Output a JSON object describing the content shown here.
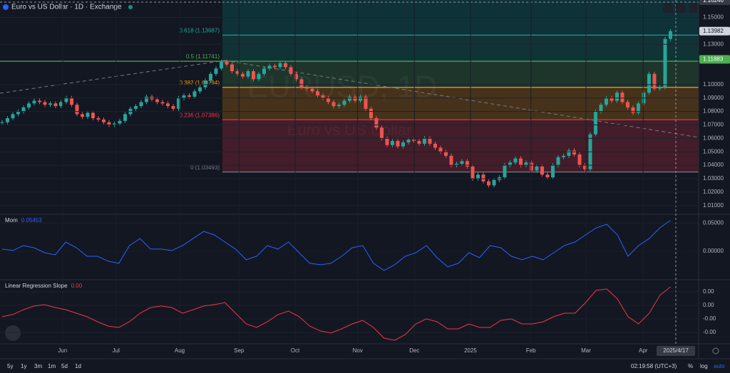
{
  "header": {
    "title": "Euro vs US Dollar · 1D · Exchange"
  },
  "watermark": {
    "symbol": "EURUSD, 1D",
    "name": "Euro vs US Dollar"
  },
  "chart_data": {
    "type": "candlestick",
    "up_color": "#26a69a",
    "down_color": "#ef5350",
    "values": [
      1.072,
      1.075,
      1.078,
      1.08,
      1.083,
      1.086,
      1.088,
      1.087,
      1.085,
      1.086,
      1.084,
      1.087,
      1.09,
      1.085,
      1.078,
      1.076,
      1.079,
      1.075,
      1.074,
      1.072,
      1.07,
      1.071,
      1.073,
      1.078,
      1.082,
      1.084,
      1.087,
      1.091,
      1.089,
      1.087,
      1.086,
      1.084,
      1.082,
      1.09,
      1.092,
      1.091,
      1.095,
      1.098,
      1.103,
      1.108,
      1.112,
      1.117,
      1.115,
      1.11,
      1.108,
      1.106,
      1.11,
      1.104,
      1.108,
      1.112,
      1.114,
      1.113,
      1.116,
      1.113,
      1.108,
      1.104,
      1.098,
      1.097,
      1.095,
      1.092,
      1.09,
      1.087,
      1.084,
      1.085,
      1.088,
      1.091,
      1.088,
      1.091,
      1.082,
      1.075,
      1.068,
      1.06,
      1.055,
      1.058,
      1.054,
      1.057,
      1.059,
      1.058,
      1.056,
      1.06,
      1.056,
      1.053,
      1.05,
      1.047,
      1.04,
      1.041,
      1.043,
      1.039,
      1.03,
      1.033,
      1.028,
      1.025,
      1.029,
      1.031,
      1.04,
      1.042,
      1.045,
      1.04,
      1.042,
      1.036,
      1.039,
      1.033,
      1.031,
      1.04,
      1.046,
      1.047,
      1.051,
      1.048,
      1.04,
      1.037,
      1.063,
      1.08,
      1.085,
      1.09,
      1.088,
      1.094,
      1.087,
      1.083,
      1.079,
      1.086,
      1.094,
      1.108,
      1.097,
      1.098,
      1.134,
      1.13982
    ],
    "xlim": [
      -0.4,
      130.27
    ],
    "xticks": [
      {
        "value": 11.3,
        "label": "Jun"
      },
      {
        "value": 21.3,
        "label": "Jul"
      },
      {
        "value": 33.2,
        "label": "Aug"
      },
      {
        "value": 44.3,
        "label": "Sep"
      },
      {
        "value": 54.8,
        "label": "Oct"
      },
      {
        "value": 66.5,
        "label": "Nov"
      },
      {
        "value": 77.1,
        "label": "Dec"
      },
      {
        "value": 87.6,
        "label": "2025"
      },
      {
        "value": 98.9,
        "label": "Feb"
      },
      {
        "value": 109.2,
        "label": "Mar"
      },
      {
        "value": 119.9,
        "label": "Apr"
      }
    ],
    "ylim": [
      1.004,
      1.163
    ],
    "yticks": [
      {
        "value": 1.15,
        "label": "1.15000"
      },
      {
        "value": 1.13,
        "label": "1.13000"
      },
      {
        "value": 1.1,
        "label": "1.10000"
      },
      {
        "value": 1.09,
        "label": "1.09000"
      },
      {
        "value": 1.08,
        "label": "1.08000"
      },
      {
        "value": 1.07,
        "label": "1.07000"
      },
      {
        "value": 1.06,
        "label": "1.06000"
      },
      {
        "value": 1.05,
        "label": "1.05000"
      },
      {
        "value": 1.04,
        "label": "1.04000"
      },
      {
        "value": 1.03,
        "label": "1.03000"
      },
      {
        "value": 1.02,
        "label": "1.02000"
      },
      {
        "value": 1.01,
        "label": "1.01000"
      }
    ],
    "price_badges": [
      {
        "value": 1.16246,
        "color": "#363a45"
      },
      {
        "value": 1.13982,
        "color": "#d1d4dc"
      },
      {
        "value": 1.11883,
        "color": "#4caf50"
      }
    ],
    "fib_levels": [
      {
        "label": "0 (1.03493)",
        "price": 1.03493,
        "color": "#787b86",
        "fill": "rgba(242,54,69,0.22)"
      },
      {
        "label": "0.236 (1.07386)",
        "price": 1.07386,
        "color": "#f23645",
        "fill": "rgba(255,152,0,0.22)"
      },
      {
        "label": "0.382 (1.09794)",
        "price": 1.09794,
        "color": "#ff9800",
        "fill": "rgba(76,175,80,0.2)"
      },
      {
        "label": "0.5 (1.11741)",
        "price": 1.11741,
        "color": "#4caf50",
        "fill": "rgba(8,153,129,0.22)"
      },
      {
        "label": "0.618 (1.13687)",
        "price": 1.13687,
        "color": "#26a69a",
        "fill": "rgba(0,150,136,0.22)"
      }
    ],
    "indicators": [
      {
        "name": "Mom",
        "color": "#2962ff",
        "values": [
          0.0038,
          0.0013,
          0.01,
          0.0063,
          -0.0025,
          -0.0063,
          0.0163,
          0.0063,
          -0.0088,
          -0.0088,
          -0.0175,
          -0.0213,
          0.01,
          0.0225,
          0.0038,
          0.0038,
          0.0013,
          0.01,
          0.0225,
          0.035,
          0.0288,
          0.0163,
          0.0038,
          -0.015,
          -0.0088,
          0.01,
          0.0038,
          0.0163,
          -0.0025,
          -0.0213,
          -0.0238,
          -0.0213,
          -0.0088,
          0.0063,
          0.01,
          -0.0213,
          -0.0338,
          -0.0238,
          -0.0088,
          -0.0025,
          0.01,
          -0.0113,
          -0.0275,
          -0.0213,
          -0.0025,
          -0.0113,
          0.01,
          0.0063,
          -0.0088,
          -0.015,
          -0.0088,
          -0.015,
          -0.0025,
          0.01,
          0.0163,
          0.0288,
          0.0413,
          0.0475,
          0.0288,
          -0.0088,
          0.01,
          0.0225,
          0.0413,
          0.05453
        ],
        "ylim": [
          -0.049,
          0.064
        ],
        "yticks": [
          {
            "value": 0.05,
            "label": "0.05000"
          },
          {
            "value": 0,
            "label": "0.00000"
          }
        ]
      },
      {
        "name": "Linear Regression Slope",
        "color": "#f23645",
        "value_label": "0.00",
        "values": [
          -0.00034,
          -0.00018,
          0.00018,
          0.00045,
          0.00055,
          0.00034,
          0.00018,
          -8e-05,
          -0.00034,
          -0.00071,
          -0.00103,
          -0.00113,
          -0.00071,
          -8e-05,
          0.00034,
          0.00045,
          0.00034,
          -8e-05,
          0.00018,
          0.00045,
          0.00055,
          0.00071,
          -8e-05,
          -0.00087,
          -0.00113,
          -0.00071,
          -0.00018,
          8e-05,
          -0.00034,
          -0.00103,
          -0.00139,
          -0.00155,
          -0.00124,
          -0.00087,
          -0.00061,
          -0.00113,
          -0.00192,
          -0.00208,
          -0.00166,
          -0.00087,
          -0.0005,
          -0.00071,
          -0.00124,
          -0.00124,
          -0.00087,
          -0.00113,
          -0.00113,
          -0.00061,
          -0.0005,
          -0.00087,
          -0.00087,
          -0.00071,
          -0.00034,
          -8e-05,
          -8e-05,
          0.00071,
          0.00161,
          0.00171,
          0.00097,
          -0.00034,
          -0.00087,
          -8e-05,
          0.00124,
          0.00187
        ],
        "ylim": [
          -0.00229,
          0.00234
        ],
        "yticks": [
          {
            "value": 0.0015,
            "label": "0.00"
          },
          {
            "value": 0.0005,
            "label": "0.00"
          },
          {
            "value": -0.0005,
            "label": "-0.00"
          },
          {
            "value": -0.0015,
            "label": "-0.00"
          }
        ]
      }
    ]
  },
  "crosshair_date": "2025/4/17",
  "footer": {
    "ranges": [
      "5y",
      "1y",
      "3m",
      "1m",
      "5d",
      "1d"
    ],
    "time": "02:19:58 (UTC+3)",
    "percent": "%",
    "log": "log",
    "auto": "auto"
  }
}
